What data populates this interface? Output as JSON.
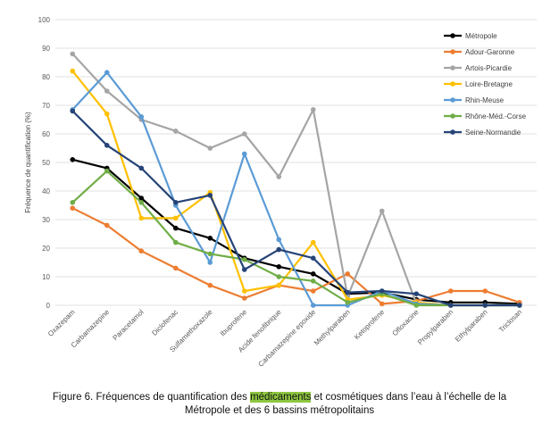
{
  "chart_data": {
    "type": "line",
    "ylabel": "Fréquence de quantification (%)",
    "ylim": [
      0,
      100
    ],
    "yticks": [
      0,
      10,
      20,
      30,
      40,
      50,
      60,
      70,
      80,
      90,
      100
    ],
    "legend_position": "top-right",
    "categories": [
      "Oxazepam",
      "Carbamazepine",
      "Paracetamol",
      "Diclofenac",
      "Sulfamethoxazole",
      "Ibuprofene",
      "Acide fenofibrique",
      "Carbamazepine epoxide",
      "Methylparaben",
      "Ketoprofene",
      "Ofloxacine",
      "Propylparaben",
      "Ethylparaben",
      "Triclosan"
    ],
    "series": [
      {
        "name": "Métropole",
        "color": "#000000",
        "values": [
          51,
          48,
          37.5,
          27,
          23.5,
          16.5,
          13.5,
          11,
          4,
          4.5,
          2,
          1,
          1,
          0.5
        ]
      },
      {
        "name": "Adour-Garonne",
        "color": "#ed7d31",
        "values": [
          34,
          28,
          19,
          13,
          7,
          2.5,
          7,
          5,
          11,
          0.5,
          1.5,
          5,
          5,
          1
        ]
      },
      {
        "name": "Artois-Picardie",
        "color": "#a5a5a5",
        "values": [
          88,
          75,
          65,
          61,
          55,
          60,
          45,
          68.5,
          3,
          33,
          0.5,
          0,
          0,
          0
        ]
      },
      {
        "name": "Loire-Bretagne",
        "color": "#ffc000",
        "values": [
          82,
          67,
          30.5,
          30.5,
          39.5,
          5,
          7,
          22,
          2,
          3.5,
          1,
          0,
          0,
          0
        ]
      },
      {
        "name": "Rhin-Meuse",
        "color": "#5b9bd5",
        "values": [
          68.5,
          81.5,
          66,
          35,
          15,
          53,
          23,
          0,
          0,
          5,
          0.5,
          0,
          0,
          0
        ]
      },
      {
        "name": "Rhône-Méd.-Corse",
        "color": "#70ad47",
        "values": [
          36,
          47,
          36,
          22,
          18,
          16,
          10,
          8.5,
          1,
          4,
          0,
          0,
          0,
          0
        ]
      },
      {
        "name": "Seine-Normandie",
        "color": "#264478",
        "values": [
          68,
          56,
          48,
          36,
          38.5,
          12.5,
          19.5,
          16.5,
          4.5,
          5,
          4,
          0,
          0,
          0
        ]
      }
    ]
  },
  "caption": {
    "before": "Figure 6. Fréquences de quantification des ",
    "highlight": "médicaments",
    "after": " et cosmétiques dans l’eau à l’échelle de la",
    "line2": "Métropole et des 6 bassins métropolitains"
  }
}
